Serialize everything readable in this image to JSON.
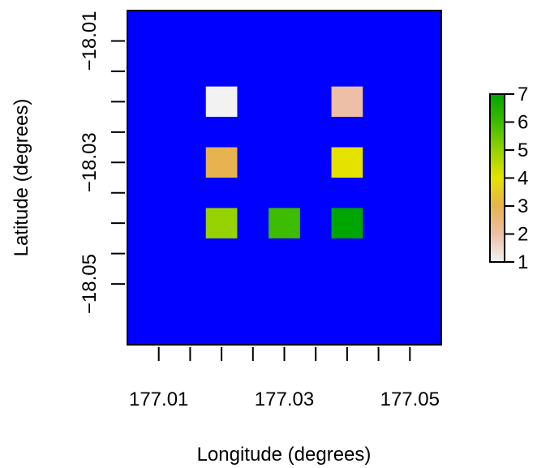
{
  "chart_data": {
    "type": "heatmap",
    "title": "",
    "xlabel": "Longitude (degrees)",
    "ylabel": "Latitude (degrees)",
    "xlim": [
      177.005,
      177.055
    ],
    "ylim": [
      -18.06,
      -18.005
    ],
    "x_ticks": [
      177.01,
      177.015,
      177.02,
      177.025,
      177.03,
      177.035,
      177.04,
      177.045,
      177.05
    ],
    "x_tick_labels": [
      {
        "value": 177.01,
        "label": "177.01"
      },
      {
        "value": 177.03,
        "label": "177.03"
      },
      {
        "value": 177.05,
        "label": "177.05"
      }
    ],
    "y_ticks": [
      -18.01,
      -18.015,
      -18.02,
      -18.025,
      -18.03,
      -18.035,
      -18.04,
      -18.045,
      -18.05
    ],
    "y_tick_labels": [
      {
        "value": -18.01,
        "label": "−18.01"
      },
      {
        "value": -18.03,
        "label": "−18.03"
      },
      {
        "value": -18.05,
        "label": "−18.05"
      }
    ],
    "background_color": "#0000FF",
    "cell_size": 0.005,
    "cells": [
      {
        "x": 177.02,
        "y": -18.02,
        "value": 1,
        "color": "#F2F2F2"
      },
      {
        "x": 177.04,
        "y": -18.02,
        "value": 2,
        "color": "#EDBFA6"
      },
      {
        "x": 177.02,
        "y": -18.03,
        "value": 3,
        "color": "#E6B350"
      },
      {
        "x": 177.04,
        "y": -18.03,
        "value": 4,
        "color": "#E6E200"
      },
      {
        "x": 177.02,
        "y": -18.04,
        "value": 5,
        "color": "#95D200"
      },
      {
        "x": 177.03,
        "y": -18.04,
        "value": 6,
        "color": "#3DBC00"
      },
      {
        "x": 177.04,
        "y": -18.04,
        "value": 7,
        "color": "#00A600"
      }
    ],
    "legend": {
      "min": 1,
      "max": 7,
      "ticks": [
        "1",
        "2",
        "3",
        "4",
        "5",
        "6",
        "7"
      ],
      "gradient_colors": [
        "#F2F2F2",
        "#EDBFA6",
        "#E6B350",
        "#E6E200",
        "#95D200",
        "#3DBC00",
        "#00A600"
      ]
    }
  }
}
